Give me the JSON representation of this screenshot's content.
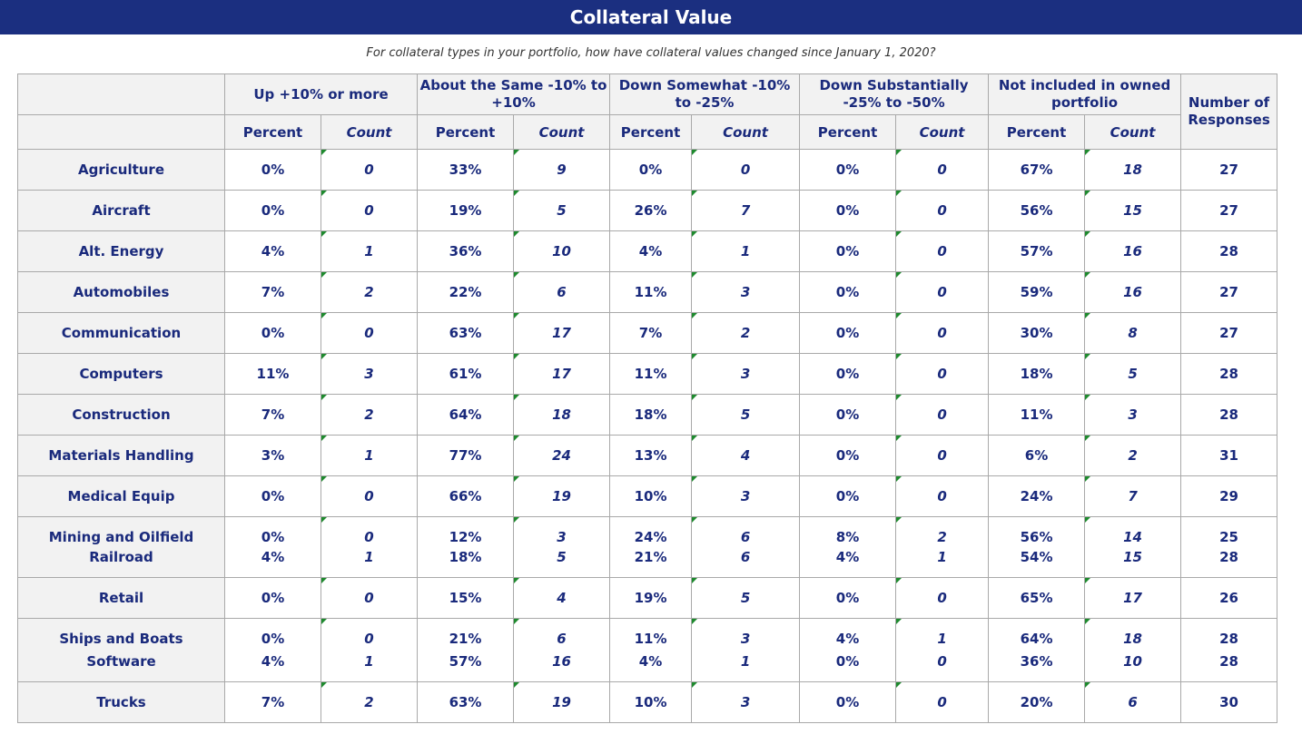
{
  "title": "Collateral Value",
  "subtitle": "For collateral types in your portfolio, how have collateral values changed since January 1, 2020?",
  "headers": {
    "groups": [
      "Up +10% or more",
      "About the Same -10% to +10%",
      "Down Somewhat  -10% to -25%",
      "Down Substantially -25% to -50%",
      "Not included in owned portfolio"
    ],
    "responses": "Number of Responses",
    "percent": "Percent",
    "count": "Count"
  },
  "rows": [
    {
      "cat": [
        "Agriculture"
      ],
      "vals": [
        [
          "0%"
        ],
        [
          "0"
        ],
        [
          "33%"
        ],
        [
          "9"
        ],
        [
          "0%"
        ],
        [
          "0"
        ],
        [
          "0%"
        ],
        [
          "0"
        ],
        [
          "67%"
        ],
        [
          "18"
        ],
        [
          "27"
        ]
      ]
    },
    {
      "cat": [
        "Aircraft"
      ],
      "vals": [
        [
          "0%"
        ],
        [
          "0"
        ],
        [
          "19%"
        ],
        [
          "5"
        ],
        [
          "26%"
        ],
        [
          "7"
        ],
        [
          "0%"
        ],
        [
          "0"
        ],
        [
          "56%"
        ],
        [
          "15"
        ],
        [
          "27"
        ]
      ]
    },
    {
      "cat": [
        "Alt. Energy"
      ],
      "vals": [
        [
          "4%"
        ],
        [
          "1"
        ],
        [
          "36%"
        ],
        [
          "10"
        ],
        [
          "4%"
        ],
        [
          "1"
        ],
        [
          "0%"
        ],
        [
          "0"
        ],
        [
          "57%"
        ],
        [
          "16"
        ],
        [
          "28"
        ]
      ]
    },
    {
      "cat": [
        "Automobiles"
      ],
      "vals": [
        [
          "7%"
        ],
        [
          "2"
        ],
        [
          "22%"
        ],
        [
          "6"
        ],
        [
          "11%"
        ],
        [
          "3"
        ],
        [
          "0%"
        ],
        [
          "0"
        ],
        [
          "59%"
        ],
        [
          "16"
        ],
        [
          "27"
        ]
      ]
    },
    {
      "cat": [
        "Communication"
      ],
      "vals": [
        [
          "0%"
        ],
        [
          "0"
        ],
        [
          "63%"
        ],
        [
          "17"
        ],
        [
          "7%"
        ],
        [
          "2"
        ],
        [
          "0%"
        ],
        [
          "0"
        ],
        [
          "30%"
        ],
        [
          "8"
        ],
        [
          "27"
        ]
      ]
    },
    {
      "cat": [
        "Computers"
      ],
      "vals": [
        [
          "11%"
        ],
        [
          "3"
        ],
        [
          "61%"
        ],
        [
          "17"
        ],
        [
          "11%"
        ],
        [
          "3"
        ],
        [
          "0%"
        ],
        [
          "0"
        ],
        [
          "18%"
        ],
        [
          "5"
        ],
        [
          "28"
        ]
      ]
    },
    {
      "cat": [
        "Construction"
      ],
      "vals": [
        [
          "7%"
        ],
        [
          "2"
        ],
        [
          "64%"
        ],
        [
          "18"
        ],
        [
          "18%"
        ],
        [
          "5"
        ],
        [
          "0%"
        ],
        [
          "0"
        ],
        [
          "11%"
        ],
        [
          "3"
        ],
        [
          "28"
        ]
      ]
    },
    {
      "cat": [
        "Materials Handling"
      ],
      "vals": [
        [
          "3%"
        ],
        [
          "1"
        ],
        [
          "77%"
        ],
        [
          "24"
        ],
        [
          "13%"
        ],
        [
          "4"
        ],
        [
          "0%"
        ],
        [
          "0"
        ],
        [
          "6%"
        ],
        [
          "2"
        ],
        [
          "31"
        ]
      ]
    },
    {
      "cat": [
        "Medical Equip"
      ],
      "vals": [
        [
          "0%"
        ],
        [
          "0"
        ],
        [
          "66%"
        ],
        [
          "19"
        ],
        [
          "10%"
        ],
        [
          "3"
        ],
        [
          "0%"
        ],
        [
          "0"
        ],
        [
          "24%"
        ],
        [
          "7"
        ],
        [
          "29"
        ]
      ]
    },
    {
      "cat": [
        "Mining and Oilfield",
        "Railroad"
      ],
      "vals": [
        [
          "0%",
          "4%"
        ],
        [
          "0",
          "1"
        ],
        [
          "12%",
          "18%"
        ],
        [
          "3",
          "5"
        ],
        [
          "24%",
          "21%"
        ],
        [
          "6",
          "6"
        ],
        [
          "8%",
          "4%"
        ],
        [
          "2",
          "1"
        ],
        [
          "56%",
          "54%"
        ],
        [
          "14",
          "15"
        ],
        [
          "25",
          "28"
        ]
      ]
    },
    {
      "cat": [
        "Retail"
      ],
      "vals": [
        [
          "0%"
        ],
        [
          "0"
        ],
        [
          "15%"
        ],
        [
          "4"
        ],
        [
          "19%"
        ],
        [
          "5"
        ],
        [
          "0%"
        ],
        [
          "0"
        ],
        [
          "65%"
        ],
        [
          "17"
        ],
        [
          "26"
        ]
      ]
    },
    {
      "cat": [
        "Ships and Boats",
        "Software"
      ],
      "vals": [
        [
          "0%",
          "4%"
        ],
        [
          "0",
          "1"
        ],
        [
          "21%",
          "57%"
        ],
        [
          "6",
          "16"
        ],
        [
          "11%",
          "4%"
        ],
        [
          "3",
          "1"
        ],
        [
          "4%",
          "0%"
        ],
        [
          "1",
          "0"
        ],
        [
          "64%",
          "36%"
        ],
        [
          "18",
          "10"
        ],
        [
          "28",
          "28"
        ]
      ]
    },
    {
      "cat": [
        "Trucks"
      ],
      "vals": [
        [
          "7%"
        ],
        [
          "2"
        ],
        [
          "63%"
        ],
        [
          "19"
        ],
        [
          "10%"
        ],
        [
          "3"
        ],
        [
          "0%"
        ],
        [
          "0"
        ],
        [
          "20%"
        ],
        [
          "6"
        ],
        [
          "30"
        ]
      ]
    }
  ]
}
